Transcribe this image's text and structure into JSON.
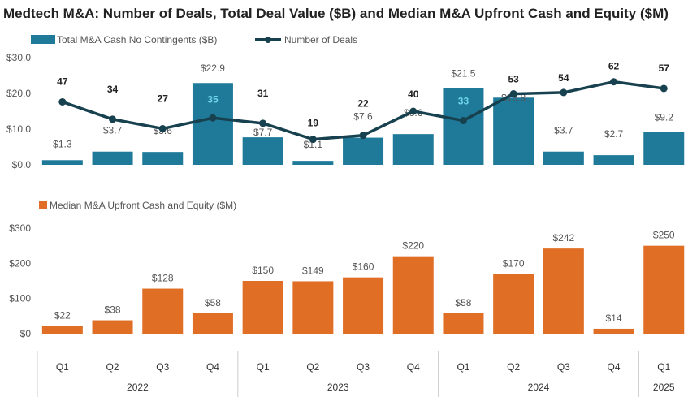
{
  "chart_data": [
    {
      "type": "bar+line",
      "title": "Medtech M&A: Number of Deals, Total Deal Value ($B) and Median M&A Upfront Cash and Equity ($M)",
      "categories": [
        "Q1",
        "Q2",
        "Q3",
        "Q4",
        "Q1",
        "Q2",
        "Q3",
        "Q4",
        "Q1",
        "Q2",
        "Q3",
        "Q4",
        "Q1"
      ],
      "years": [
        {
          "label": "2022",
          "span": 4
        },
        {
          "label": "2023",
          "span": 4
        },
        {
          "label": "2024",
          "span": 4
        },
        {
          "label": "2025",
          "span": 1
        }
      ],
      "ylim": [
        0,
        30
      ],
      "yticks": [
        "$0.0",
        "$10.0",
        "$20.0",
        "$30.0"
      ],
      "y2lim": [
        0,
        80
      ],
      "legend_position": "top-left",
      "series": [
        {
          "name": "Total M&A Cash No Contingents ($B)",
          "kind": "bar",
          "color": "#1f7a99",
          "values": [
            1.3,
            3.7,
            3.6,
            22.9,
            7.7,
            1.1,
            7.6,
            8.6,
            21.5,
            18.8,
            3.7,
            2.7,
            9.2
          ],
          "labels": [
            "$1.3",
            "$3.7",
            "$3.6",
            "$22.9",
            "$7.7",
            "$1.1",
            "$7.6",
            "$8.6",
            "$21.5",
            "$18.8",
            "$3.7",
            "$2.7",
            "$9.2"
          ]
        },
        {
          "name": "Number of Deals",
          "kind": "line",
          "color": "#17414f",
          "axis": "secondary",
          "values": [
            47,
            34,
            27,
            35,
            31,
            19,
            22,
            40,
            33,
            53,
            54,
            62,
            57
          ],
          "labels": [
            "47",
            "34",
            "27",
            "35",
            "31",
            "19",
            "22",
            "40",
            "33",
            "53",
            "54",
            "62",
            "57"
          ]
        }
      ]
    },
    {
      "type": "bar",
      "ylim": [
        0,
        300
      ],
      "yticks": [
        "$0",
        "$100",
        "$200",
        "$300"
      ],
      "legend_position": "top-left",
      "series": [
        {
          "name": "Median M&A Upfront Cash and Equity ($M)",
          "color": "#e06f25",
          "values": [
            22,
            38,
            128,
            58,
            150,
            149,
            160,
            220,
            58,
            170,
            242,
            14,
            250
          ],
          "labels": [
            "$22",
            "$38",
            "$128",
            "$58",
            "$150",
            "$149",
            "$160",
            "$220",
            "$58",
            "$170",
            "$242",
            "$14",
            "$250"
          ]
        }
      ]
    }
  ]
}
